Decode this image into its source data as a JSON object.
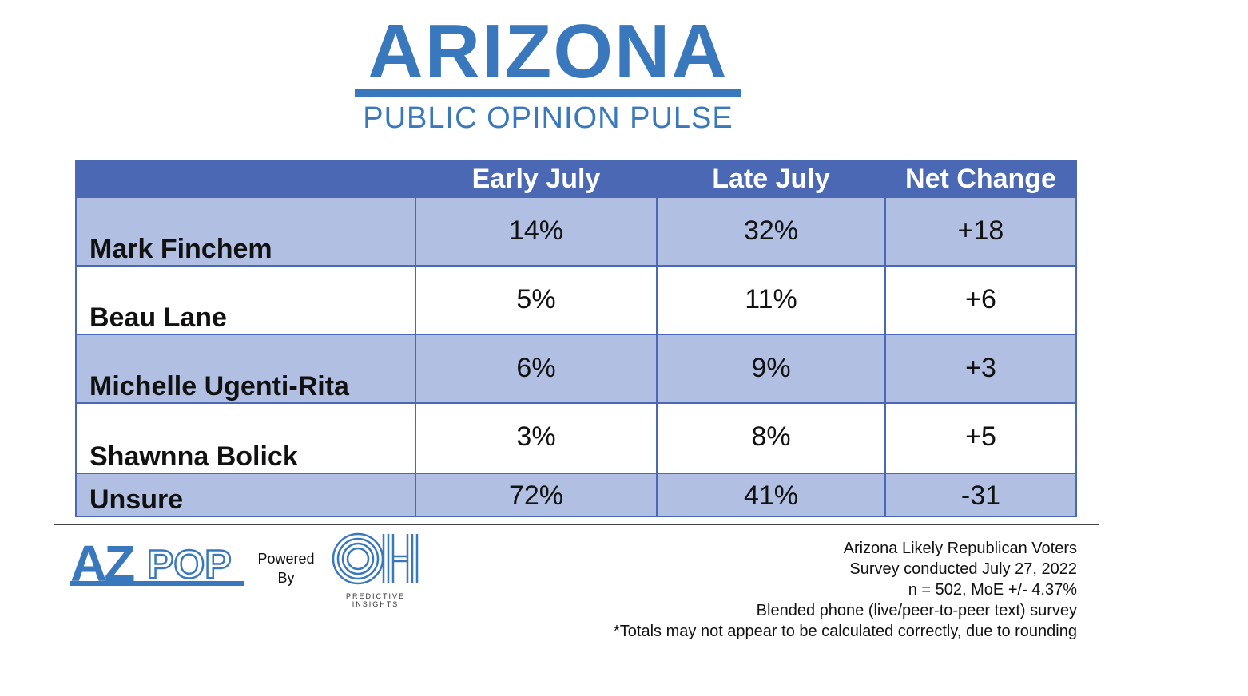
{
  "header": {
    "title": "ARIZONA",
    "subtitle": "PUBLIC OPINION PULSE"
  },
  "table": {
    "columns": [
      "",
      "Early July",
      "Late July",
      "Net Change"
    ],
    "rows": [
      {
        "name": "Mark Finchem",
        "early": "14%",
        "late": "32%",
        "change": "+18"
      },
      {
        "name": "Beau Lane",
        "early": "5%",
        "late": "11%",
        "change": "+6"
      },
      {
        "name": "Michelle Ugenti-Rita",
        "early": "6%",
        "late": "9%",
        "change": "+3"
      },
      {
        "name": "Shawnna Bolick",
        "early": "3%",
        "late": "8%",
        "change": "+5"
      },
      {
        "name": "Unsure",
        "early": "72%",
        "late": "41%",
        "change": "-31"
      }
    ]
  },
  "footer": {
    "azpop_logo": "AZPOP",
    "powered_by": [
      "Powered",
      "By"
    ],
    "oh_logo": "OH",
    "oh_label": [
      "PREDICTIVE",
      "INSIGHTS"
    ],
    "notes": [
      "Arizona Likely Republican Voters",
      "Survey conducted July 27, 2022",
      "n = 502, MoE +/- 4.37%",
      "Blended phone (live/peer-to-peer text) survey",
      "*Totals may not appear to be calculated correctly, due to rounding"
    ]
  },
  "colors": {
    "brand_blue": "#3a78bd",
    "header_blue": "#4a68b4",
    "row_shade": "#b1bfe2"
  }
}
